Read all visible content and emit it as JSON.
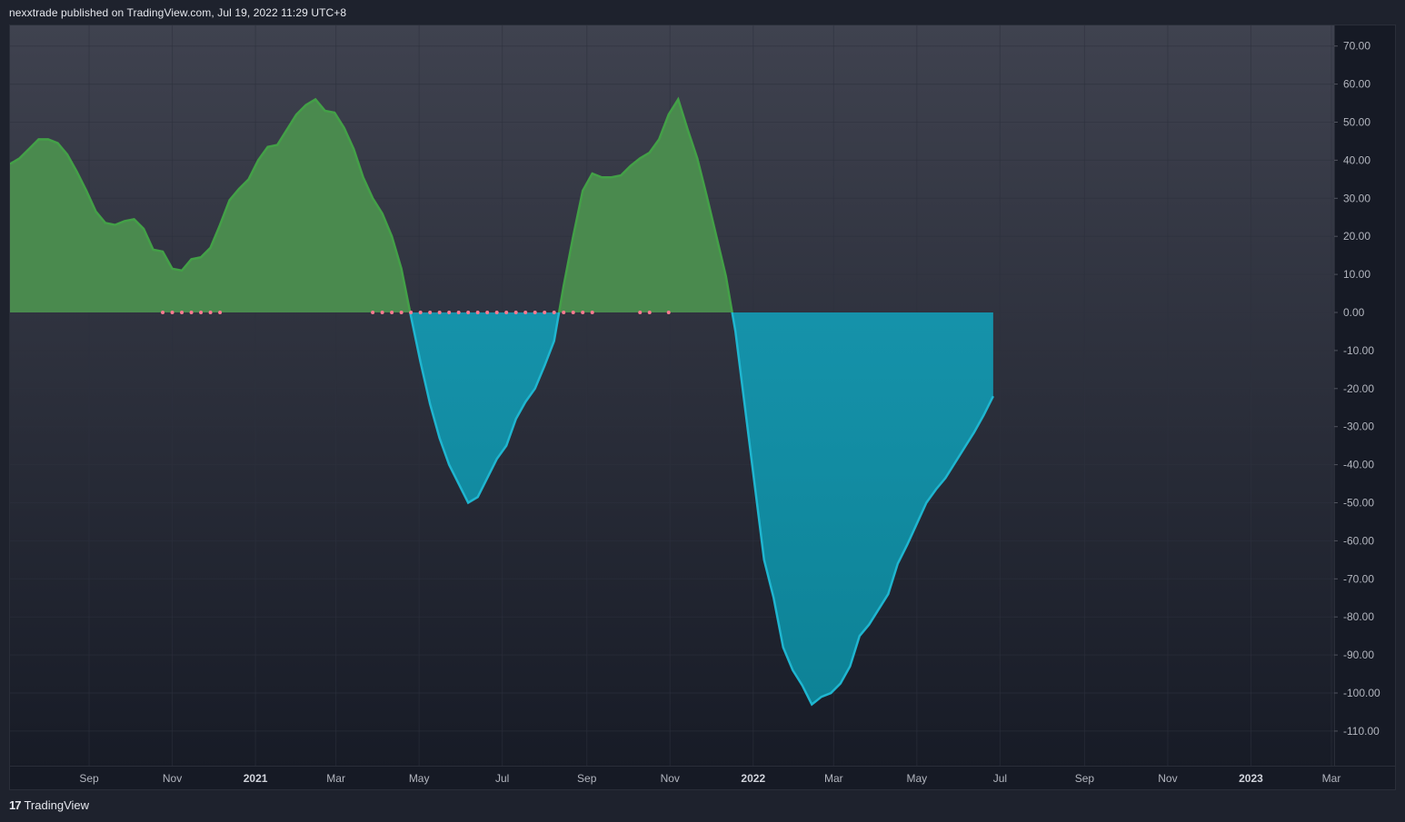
{
  "header": {
    "attribution": "nexxtrade published on TradingView.com, Jul 19, 2022 11:29 UTC+8"
  },
  "footer": {
    "logo_mark": "17",
    "logo_text": "TradingView"
  },
  "colors": {
    "background_top": "#3f424f",
    "background_bottom": "#161a25",
    "positive_fill": "#4a8a4e",
    "positive_line": "#43a047",
    "negative_fill": "#138fa6",
    "negative_line": "#1fb6d0",
    "dot": "#ff7a90",
    "grid": "#2e323e"
  },
  "chart_data": {
    "type": "area",
    "title": "",
    "xlabel": "",
    "ylabel": "",
    "ylim": [
      -118,
      75
    ],
    "y_ticks": [
      "70.00",
      "60.00",
      "50.00",
      "40.00",
      "30.00",
      "20.00",
      "10.00",
      "0.00",
      "-10.00",
      "-20.00",
      "-30.00",
      "-40.00",
      "-50.00",
      "-60.00",
      "-70.00",
      "-80.00",
      "-90.00",
      "-100.00",
      "-110.00"
    ],
    "y_tick_values": [
      70,
      60,
      50,
      40,
      30,
      20,
      10,
      0,
      -10,
      -20,
      -30,
      -40,
      -50,
      -60,
      -70,
      -80,
      -90,
      -100,
      -110
    ],
    "x_ticks": [
      {
        "label": "Sep",
        "date": "2020-09-01",
        "bold": false
      },
      {
        "label": "Nov",
        "date": "2020-11-01",
        "bold": false
      },
      {
        "label": "2021",
        "date": "2021-01-01",
        "bold": true
      },
      {
        "label": "Mar",
        "date": "2021-03-01",
        "bold": false
      },
      {
        "label": "May",
        "date": "2021-05-01",
        "bold": false
      },
      {
        "label": "Jul",
        "date": "2021-07-01",
        "bold": false
      },
      {
        "label": "Sep",
        "date": "2021-09-01",
        "bold": false
      },
      {
        "label": "Nov",
        "date": "2021-11-01",
        "bold": false
      },
      {
        "label": "2022",
        "date": "2022-01-01",
        "bold": true
      },
      {
        "label": "Mar",
        "date": "2022-03-01",
        "bold": false
      },
      {
        "label": "May",
        "date": "2022-05-01",
        "bold": false
      },
      {
        "label": "Jul",
        "date": "2022-07-01",
        "bold": false
      },
      {
        "label": "Sep",
        "date": "2022-09-01",
        "bold": false
      },
      {
        "label": "Nov",
        "date": "2022-11-01",
        "bold": false
      },
      {
        "label": "2023",
        "date": "2023-01-01",
        "bold": true
      },
      {
        "label": "Mar",
        "date": "2023-03-01",
        "bold": false
      }
    ],
    "x_range": [
      "2020-07-05",
      "2023-03-03"
    ],
    "grid": true,
    "series": [
      {
        "points": [
          [
            "2020-07-05",
            39
          ],
          [
            "2020-07-12",
            40.5
          ],
          [
            "2020-07-19",
            43
          ],
          [
            "2020-07-26",
            45.5
          ],
          [
            "2020-08-02",
            45.5
          ],
          [
            "2020-08-09",
            44.5
          ],
          [
            "2020-08-16",
            41.5
          ],
          [
            "2020-08-23",
            37
          ],
          [
            "2020-08-30",
            32
          ],
          [
            "2020-09-06",
            26.5
          ],
          [
            "2020-09-13",
            23.5
          ],
          [
            "2020-09-20",
            23
          ],
          [
            "2020-09-27",
            24
          ],
          [
            "2020-10-04",
            24.5
          ],
          [
            "2020-10-11",
            22
          ],
          [
            "2020-10-18",
            16.5
          ],
          [
            "2020-10-25",
            16
          ],
          [
            "2020-11-01",
            11.5
          ],
          [
            "2020-11-08",
            11
          ],
          [
            "2020-11-15",
            14
          ],
          [
            "2020-11-22",
            14.5
          ],
          [
            "2020-11-29",
            17
          ],
          [
            "2020-12-06",
            23
          ],
          [
            "2020-12-13",
            29.5
          ],
          [
            "2020-12-20",
            32.5
          ],
          [
            "2020-12-27",
            35
          ],
          [
            "2021-01-03",
            40
          ],
          [
            "2021-01-10",
            43.5
          ],
          [
            "2021-01-17",
            44
          ],
          [
            "2021-01-24",
            48
          ],
          [
            "2021-01-31",
            52
          ],
          [
            "2021-02-07",
            54.5
          ],
          [
            "2021-02-14",
            56
          ],
          [
            "2021-02-21",
            53
          ],
          [
            "2021-02-28",
            52.5
          ],
          [
            "2021-03-07",
            48.5
          ],
          [
            "2021-03-14",
            43
          ],
          [
            "2021-03-21",
            35.5
          ],
          [
            "2021-03-28",
            30
          ],
          [
            "2021-04-04",
            26
          ],
          [
            "2021-04-11",
            20
          ],
          [
            "2021-04-18",
            11.5
          ],
          [
            "2021-04-25",
            -1
          ],
          [
            "2021-05-02",
            -13
          ],
          [
            "2021-05-09",
            -24
          ],
          [
            "2021-05-16",
            -33
          ],
          [
            "2021-05-23",
            -40
          ],
          [
            "2021-05-30",
            -45
          ],
          [
            "2021-06-06",
            -50
          ],
          [
            "2021-06-13",
            -48.5
          ],
          [
            "2021-06-20",
            -43.5
          ],
          [
            "2021-06-27",
            -38.5
          ],
          [
            "2021-07-04",
            -35
          ],
          [
            "2021-07-11",
            -28
          ],
          [
            "2021-07-18",
            -23.5
          ],
          [
            "2021-07-25",
            -20
          ],
          [
            "2021-08-01",
            -14
          ],
          [
            "2021-08-08",
            -7.5
          ],
          [
            "2021-08-15",
            7
          ],
          [
            "2021-08-22",
            20
          ],
          [
            "2021-08-29",
            32
          ],
          [
            "2021-09-05",
            36.5
          ],
          [
            "2021-09-12",
            35.5
          ],
          [
            "2021-09-19",
            35.5
          ],
          [
            "2021-09-26",
            36
          ],
          [
            "2021-10-03",
            38.5
          ],
          [
            "2021-10-10",
            40.5
          ],
          [
            "2021-10-17",
            42
          ],
          [
            "2021-10-24",
            45.5
          ],
          [
            "2021-10-31",
            52
          ],
          [
            "2021-11-07",
            56
          ],
          [
            "2021-11-14",
            48
          ],
          [
            "2021-11-21",
            40.5
          ],
          [
            "2021-11-28",
            30.5
          ],
          [
            "2021-12-05",
            20
          ],
          [
            "2021-12-12",
            9.5
          ],
          [
            "2021-12-19",
            -5
          ],
          [
            "2021-12-26",
            -25
          ],
          [
            "2022-01-02",
            -45
          ],
          [
            "2022-01-09",
            -65
          ],
          [
            "2022-01-16",
            -75
          ],
          [
            "2022-01-23",
            -88
          ],
          [
            "2022-01-30",
            -94
          ],
          [
            "2022-02-06",
            -98
          ],
          [
            "2022-02-13",
            -103
          ],
          [
            "2022-02-20",
            -101
          ],
          [
            "2022-02-27",
            -100
          ],
          [
            "2022-03-06",
            -97.5
          ],
          [
            "2022-03-13",
            -93
          ],
          [
            "2022-03-20",
            -85
          ],
          [
            "2022-03-27",
            -82
          ],
          [
            "2022-04-03",
            -78
          ],
          [
            "2022-04-10",
            -74
          ],
          [
            "2022-04-17",
            -66
          ],
          [
            "2022-04-24",
            -61
          ],
          [
            "2022-05-01",
            -55.5
          ],
          [
            "2022-05-08",
            -50
          ],
          [
            "2022-05-15",
            -46.5
          ],
          [
            "2022-05-22",
            -43.5
          ],
          [
            "2022-05-29",
            -39.5
          ],
          [
            "2022-06-05",
            -35.5
          ],
          [
            "2022-06-12",
            -31.5
          ],
          [
            "2022-06-19",
            -27
          ],
          [
            "2022-06-26",
            -22
          ]
        ]
      }
    ],
    "markers": {
      "value": 0,
      "dates": [
        "2020-10-25",
        "2020-11-01",
        "2020-11-08",
        "2020-11-15",
        "2020-11-22",
        "2020-11-29",
        "2020-12-06",
        "2021-03-28",
        "2021-04-04",
        "2021-04-11",
        "2021-04-18",
        "2021-04-25",
        "2021-05-02",
        "2021-05-09",
        "2021-05-16",
        "2021-05-23",
        "2021-05-30",
        "2021-06-06",
        "2021-06-13",
        "2021-06-20",
        "2021-06-27",
        "2021-07-04",
        "2021-07-11",
        "2021-07-18",
        "2021-07-25",
        "2021-08-01",
        "2021-08-08",
        "2021-08-15",
        "2021-08-22",
        "2021-08-29",
        "2021-09-05",
        "2021-10-10",
        "2021-10-17",
        "2021-10-31"
      ]
    }
  }
}
